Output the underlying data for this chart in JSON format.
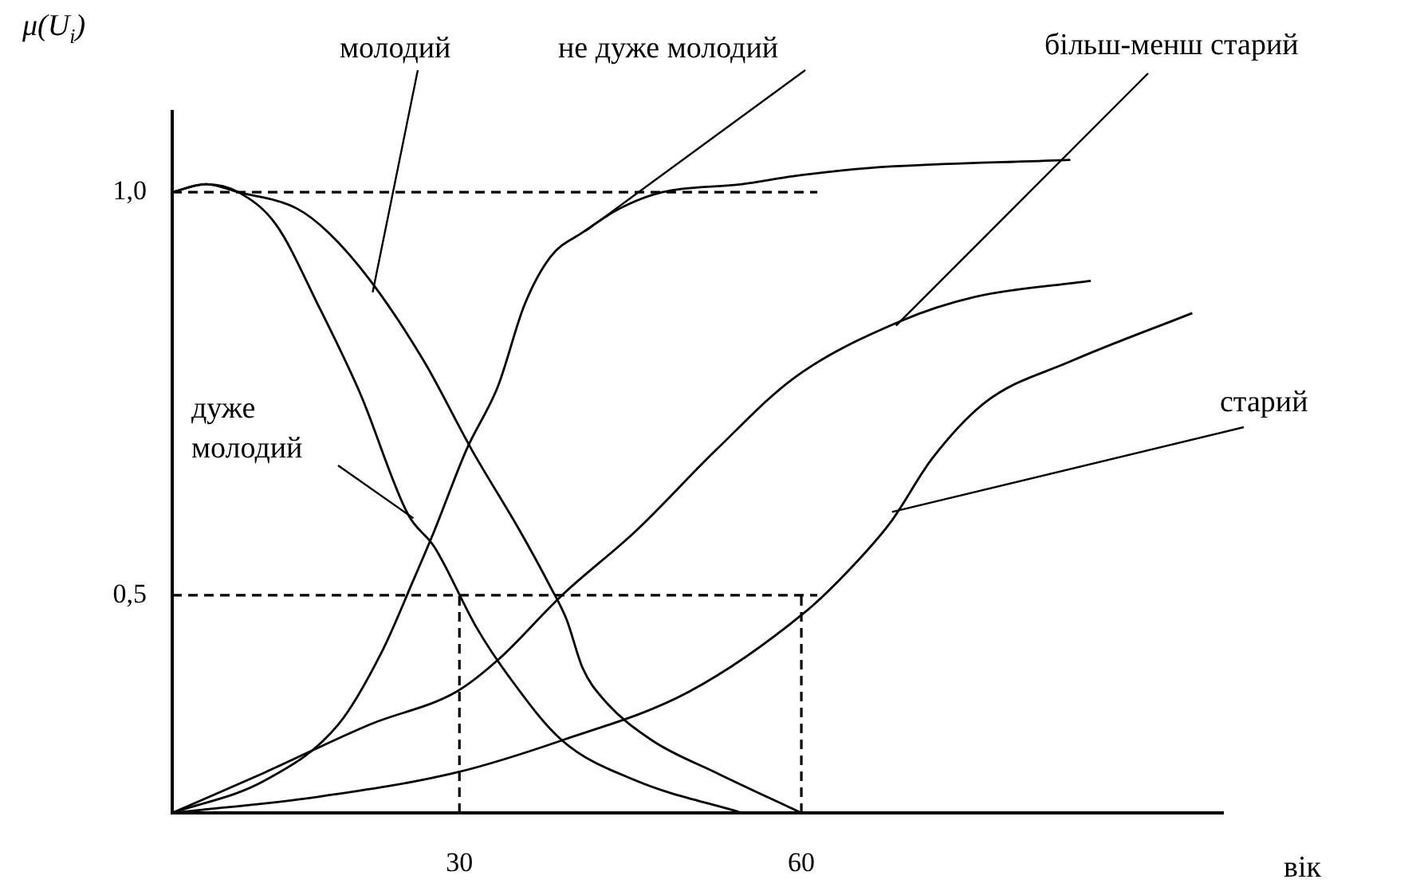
{
  "chart_data": {
    "type": "line",
    "ylabel": "μ(U$_{i}$)",
    "xlabel": "вік",
    "xlim": [
      4.8,
      97
    ],
    "ylim": [
      0.23,
      1.1
    ],
    "xticks": [
      30,
      60
    ],
    "yticks": [
      {
        "value": 0.5,
        "label": "0,5"
      },
      {
        "value": 1.0,
        "label": "1,0"
      }
    ],
    "marker": "none",
    "line_style": "solid",
    "ref_lines": [
      {
        "axis": "y",
        "value": 1.0,
        "line_style": "dashed"
      },
      {
        "axis": "y",
        "value": 0.5,
        "line_style": "dashed"
      },
      {
        "axis": "x",
        "value": 30,
        "line_style": "dashed"
      },
      {
        "axis": "x",
        "value": 60,
        "line_style": "dashed"
      }
    ],
    "series": [
      {
        "name": "дуже молодий",
        "color": "#000000",
        "x": [
          4.8,
          7.8,
          10.6,
          13.9,
          17.6,
          21.3,
          25.5,
          27.8,
          31.5,
          34.3,
          39.0,
          45.5,
          54.8
        ],
        "values": [
          1.0,
          1.01,
          1.0,
          0.96,
          0.86,
          0.75,
          0.6,
          0.56,
          0.46,
          0.4,
          0.32,
          0.27,
          0.23
        ]
      },
      {
        "name": "молодий",
        "color": "#000000",
        "x": [
          4.8,
          7.8,
          10.6,
          15.7,
          18.5,
          22.2,
          26.9,
          31.1,
          35.3,
          38.0,
          39.4,
          40.8,
          42.7,
          46.9,
          52.5,
          60.0
        ],
        "values": [
          1.0,
          1.01,
          1.0,
          0.98,
          0.95,
          0.89,
          0.79,
          0.68,
          0.58,
          0.51,
          0.47,
          0.41,
          0.37,
          0.32,
          0.28,
          0.23
        ]
      },
      {
        "name": "не дуже молодий",
        "color": "#000000",
        "x": [
          4.8,
          12.9,
          19.4,
          23.2,
          26.0,
          27.8,
          30.6,
          33.4,
          35.7,
          38.0,
          40.8,
          44.1,
          47.8,
          54.8,
          59.4,
          65.9,
          83.6
        ],
        "values": [
          0.23,
          0.27,
          0.34,
          0.43,
          0.52,
          0.58,
          0.68,
          0.76,
          0.86,
          0.92,
          0.95,
          0.98,
          1.0,
          1.01,
          1.02,
          1.03,
          1.04
        ]
      },
      {
        "name": "більш-менш старий",
        "color": "#000000",
        "x": [
          4.8,
          12.9,
          22.2,
          29.7,
          33.4,
          39.0,
          45.5,
          52.5,
          59.4,
          68.7,
          75.2,
          85.4
        ],
        "values": [
          0.23,
          0.28,
          0.34,
          0.38,
          0.42,
          0.5,
          0.58,
          0.68,
          0.77,
          0.84,
          0.87,
          0.89
        ]
      },
      {
        "name": "старий",
        "color": "#000000",
        "x": [
          4.8,
          17.6,
          29.7,
          39.0,
          50.1,
          60.4,
          64.1,
          67.8,
          71.5,
          76.2,
          83.6,
          94.3
        ],
        "values": [
          0.23,
          0.25,
          0.28,
          0.32,
          0.38,
          0.48,
          0.53,
          0.59,
          0.67,
          0.74,
          0.79,
          0.85
        ]
      }
    ]
  }
}
